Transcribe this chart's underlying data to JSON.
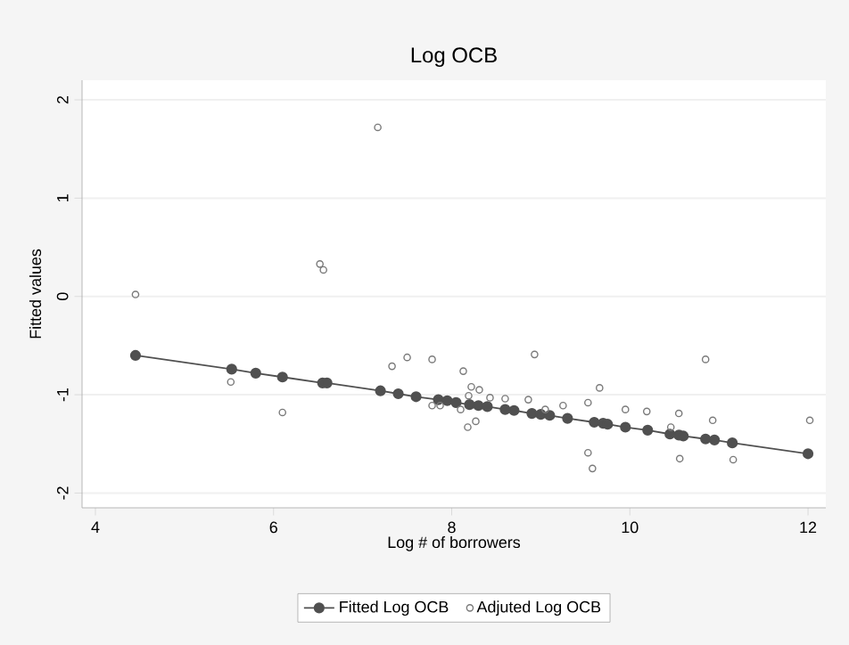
{
  "chart_data": {
    "type": "line",
    "title": "Log OCB",
    "xlabel": "Log # of borrowers",
    "ylabel": "Fitted values",
    "xlim": [
      3.85,
      12.2
    ],
    "ylim": [
      -2.15,
      2.2
    ],
    "xticks": [
      4,
      6,
      8,
      10,
      12
    ],
    "yticks": [
      -2,
      -1,
      0,
      1,
      2
    ],
    "grid": "y",
    "legend": "bottom",
    "marker": "circle",
    "series": [
      {
        "name": "Fitted Log OCB",
        "color": "#505050",
        "x": [
          4.45,
          5.53,
          5.8,
          6.1,
          6.55,
          6.6,
          7.2,
          7.4,
          7.6,
          7.85,
          7.95,
          8.05,
          8.2,
          8.3,
          8.4,
          8.6,
          8.7,
          8.9,
          9.0,
          9.1,
          9.3,
          9.6,
          9.7,
          9.75,
          9.95,
          10.2,
          10.45,
          10.55,
          10.6,
          10.85,
          10.95,
          11.15,
          12.0
        ],
        "values": [
          -0.6,
          -0.74,
          -0.78,
          -0.82,
          -0.88,
          -0.88,
          -0.96,
          -0.99,
          -1.02,
          -1.05,
          -1.06,
          -1.08,
          -1.1,
          -1.11,
          -1.12,
          -1.15,
          -1.16,
          -1.19,
          -1.2,
          -1.21,
          -1.24,
          -1.28,
          -1.29,
          -1.3,
          -1.33,
          -1.36,
          -1.4,
          -1.41,
          -1.42,
          -1.45,
          -1.46,
          -1.49,
          -1.6
        ]
      },
      {
        "name": "Adjuted Log OCB",
        "type": "scatter",
        "color": "#7a7a7a",
        "x": [
          4.45,
          5.52,
          6.1,
          6.52,
          6.56,
          7.17,
          7.33,
          7.5,
          7.78,
          7.78,
          7.87,
          8.13,
          8.22,
          8.31,
          8.19,
          8.1,
          8.18,
          8.27,
          8.43,
          8.6,
          8.86,
          8.93,
          9.05,
          9.25,
          9.53,
          9.66,
          9.53,
          9.58,
          9.95,
          10.19,
          10.46,
          10.55,
          10.56,
          10.85,
          10.93,
          11.16,
          12.02
        ],
        "values": [
          0.02,
          -0.87,
          -1.18,
          0.33,
          0.27,
          1.72,
          -0.71,
          -0.62,
          -0.64,
          -1.11,
          -1.11,
          -0.76,
          -0.92,
          -0.95,
          -1.01,
          -1.15,
          -1.33,
          -1.27,
          -1.03,
          -1.04,
          -1.05,
          -0.59,
          -1.15,
          -1.11,
          -1.08,
          -0.93,
          -1.59,
          -1.75,
          -1.15,
          -1.17,
          -1.33,
          -1.19,
          -1.65,
          -0.64,
          -1.26,
          -1.66,
          -1.26
        ]
      }
    ]
  }
}
